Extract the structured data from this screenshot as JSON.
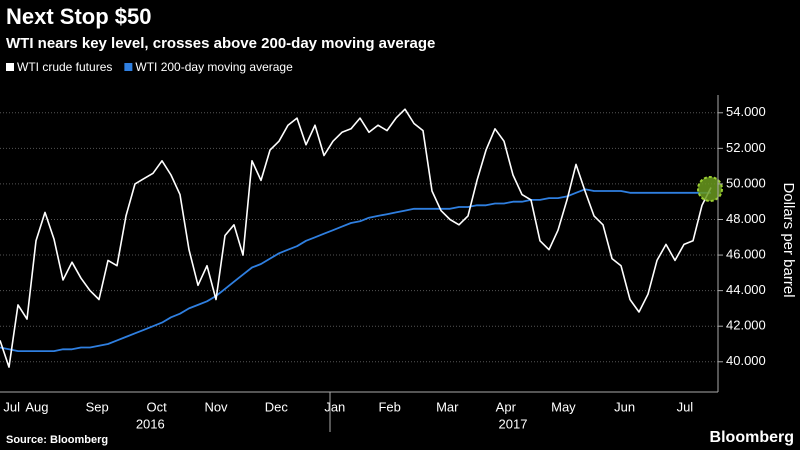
{
  "chart_data": {
    "type": "line",
    "title": "Next Stop $50",
    "subtitle": "WTI nears key level, crosses above 200-day moving average",
    "y_label": "Dollars per barrel",
    "source": "Source: Bloomberg",
    "brand": "Bloomberg",
    "grid": true,
    "xlim": [
      0,
      79
    ],
    "ylim": [
      38.3,
      55
    ],
    "yticks": [
      {
        "value": 40,
        "label": "40.000"
      },
      {
        "value": 42,
        "label": "42.000"
      },
      {
        "value": 44,
        "label": "44.000"
      },
      {
        "value": 46,
        "label": "46.000"
      },
      {
        "value": 48,
        "label": "48.000"
      },
      {
        "value": 50,
        "label": "50.000"
      },
      {
        "value": 52,
        "label": "52.000"
      },
      {
        "value": 54,
        "label": "54.000"
      }
    ],
    "xticks": [
      {
        "value": 1.3,
        "label": "Jul"
      },
      {
        "value": 4.1,
        "label": "Aug"
      },
      {
        "value": 10.8,
        "label": "Sep"
      },
      {
        "value": 17.4,
        "label": "Oct"
      },
      {
        "value": 24,
        "label": "Nov"
      },
      {
        "value": 30.7,
        "label": "Dec"
      },
      {
        "value": 37.2,
        "label": "Jan"
      },
      {
        "value": 43.3,
        "label": "Feb"
      },
      {
        "value": 49.7,
        "label": "Mar"
      },
      {
        "value": 56.2,
        "label": "Apr"
      },
      {
        "value": 62.6,
        "label": "May"
      },
      {
        "value": 69.4,
        "label": "Jun"
      },
      {
        "value": 76.1,
        "label": "Jul"
      }
    ],
    "year_ticks": [
      {
        "value": 16.7,
        "label": "2016"
      },
      {
        "value": 57,
        "label": "2017"
      }
    ],
    "series": [
      {
        "name": "WTI crude futures",
        "color": "#ffffff",
        "values": [
          41.2,
          39.7,
          43.2,
          42.4,
          46.8,
          48.4,
          46.9,
          44.6,
          45.6,
          44.7,
          44.0,
          43.5,
          45.7,
          45.4,
          48.2,
          50.0,
          50.3,
          50.6,
          51.3,
          50.5,
          49.4,
          46.3,
          44.3,
          45.4,
          43.5,
          47.1,
          47.7,
          46.0,
          51.3,
          50.2,
          51.9,
          52.4,
          53.3,
          53.7,
          52.2,
          53.3,
          51.6,
          52.4,
          52.9,
          53.1,
          53.7,
          52.9,
          53.3,
          53.0,
          53.7,
          54.2,
          53.4,
          53.0,
          49.6,
          48.5,
          48.0,
          47.7,
          48.2,
          50.2,
          51.9,
          53.1,
          52.4,
          50.5,
          49.4,
          49.1,
          46.8,
          46.3,
          47.4,
          49.1,
          51.1,
          49.6,
          48.2,
          47.7,
          45.8,
          45.4,
          43.5,
          42.8,
          43.8,
          45.7,
          46.6,
          45.7,
          46.6,
          46.8,
          48.8,
          49.8
        ]
      },
      {
        "name": "WTI 200-day moving average",
        "color": "#2f7fe0",
        "values": [
          40.8,
          40.7,
          40.6,
          40.6,
          40.6,
          40.6,
          40.6,
          40.7,
          40.7,
          40.8,
          40.8,
          40.9,
          41.0,
          41.2,
          41.4,
          41.6,
          41.8,
          42.0,
          42.2,
          42.5,
          42.7,
          43.0,
          43.2,
          43.4,
          43.7,
          44.1,
          44.5,
          44.9,
          45.3,
          45.5,
          45.8,
          46.1,
          46.3,
          46.5,
          46.8,
          47.0,
          47.2,
          47.4,
          47.6,
          47.8,
          47.9,
          48.1,
          48.2,
          48.3,
          48.4,
          48.5,
          48.6,
          48.6,
          48.6,
          48.6,
          48.6,
          48.7,
          48.7,
          48.8,
          48.8,
          48.9,
          48.9,
          49.0,
          49.0,
          49.1,
          49.1,
          49.2,
          49.2,
          49.3,
          49.5,
          49.7,
          49.6,
          49.6,
          49.6,
          49.6,
          49.5,
          49.5,
          49.5,
          49.5,
          49.5,
          49.5,
          49.5,
          49.5,
          49.5,
          49.5
        ]
      }
    ]
  }
}
